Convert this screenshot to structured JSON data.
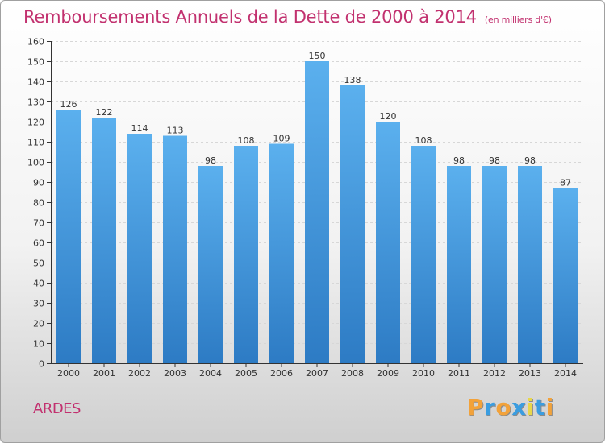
{
  "chart_data": {
    "type": "bar",
    "title": "Remboursements Annuels de la Dette de 2000 à 2014",
    "subtitle": "(en milliers d'€)",
    "categories": [
      "2000",
      "2001",
      "2002",
      "2003",
      "2004",
      "2005",
      "2006",
      "2007",
      "2008",
      "2009",
      "2010",
      "2011",
      "2012",
      "2013",
      "2014"
    ],
    "values": [
      126,
      122,
      114,
      113,
      98,
      108,
      109,
      150,
      138,
      120,
      108,
      98,
      98,
      98,
      87
    ],
    "xlabel": "",
    "ylabel": "",
    "ylim": [
      0,
      160
    ],
    "ytick_step": 10,
    "grid": true,
    "bar_color": "#4a9fe0",
    "bar_color_dark": "#2a78c2"
  },
  "commune": "ARDES",
  "logo": {
    "letters": [
      "P",
      "r",
      "o",
      "x",
      "i",
      "t",
      "i"
    ],
    "colors": [
      "#f2a23a",
      "#3a9de0",
      "#f2a23a",
      "#3a9de0",
      "#e8d64a",
      "#3a9de0",
      "#f2a23a"
    ]
  },
  "colors": {
    "title": "#c2316f",
    "axis": "#333333",
    "grid": "#d7d7d7"
  }
}
